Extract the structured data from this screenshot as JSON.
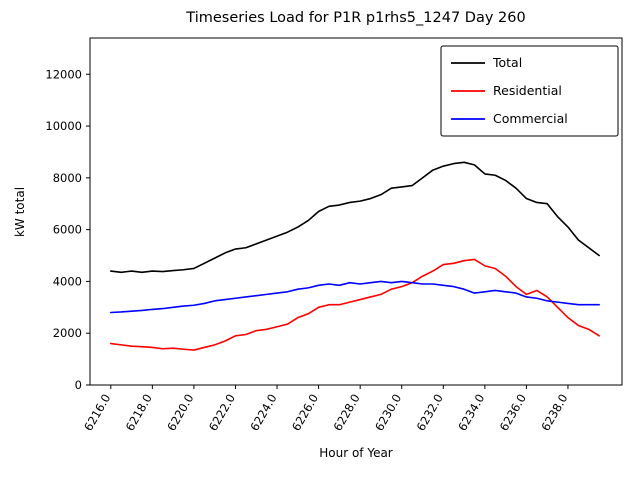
{
  "chart_data": {
    "type": "line",
    "title": "Timeseries Load for P1R p1rhs5_1247  Day 260",
    "xlabel": "Hour of Year",
    "ylabel": "kW total",
    "xlim": [
      6215.0,
      6240.6
    ],
    "ylim": [
      0,
      13400
    ],
    "grid": false,
    "legend_position": "upper right",
    "x_tick_labels": [
      "6216.0",
      "6218.0",
      "6220.0",
      "6222.0",
      "6224.0",
      "6226.0",
      "6228.0",
      "6230.0",
      "6232.0",
      "6234.0",
      "6236.0",
      "6238.0"
    ],
    "x_tick_values": [
      6216,
      6218,
      6220,
      6222,
      6224,
      6226,
      6228,
      6230,
      6232,
      6234,
      6236,
      6238
    ],
    "y_tick_labels": [
      "0",
      "2000",
      "4000",
      "6000",
      "8000",
      "10000",
      "12000"
    ],
    "y_tick_values": [
      0,
      2000,
      4000,
      6000,
      8000,
      10000,
      12000
    ],
    "x": [
      6216.0,
      6216.5,
      6217.0,
      6217.5,
      6218.0,
      6218.5,
      6219.0,
      6219.5,
      6220.0,
      6220.5,
      6221.0,
      6221.5,
      6222.0,
      6222.5,
      6223.0,
      6223.5,
      6224.0,
      6224.5,
      6225.0,
      6225.5,
      6226.0,
      6226.5,
      6227.0,
      6227.5,
      6228.0,
      6228.5,
      6229.0,
      6229.5,
      6230.0,
      6230.5,
      6231.0,
      6231.5,
      6232.0,
      6232.5,
      6233.0,
      6233.5,
      6234.0,
      6234.5,
      6235.0,
      6235.5,
      6236.0,
      6236.5,
      6237.0,
      6237.5,
      6238.0,
      6238.5,
      6239.0,
      6239.5
    ],
    "series": [
      {
        "name": "Total",
        "color": "#000000",
        "values": [
          4400,
          4350,
          4400,
          4350,
          4400,
          4380,
          4420,
          4450,
          4500,
          4700,
          4900,
          5100,
          5250,
          5300,
          5450,
          5600,
          5750,
          5900,
          6100,
          6350,
          6700,
          6900,
          6950,
          7050,
          7100,
          7200,
          7350,
          7600,
          7650,
          7700,
          8000,
          8300,
          8450,
          8550,
          8600,
          8500,
          8150,
          8100,
          7900,
          7600,
          7200,
          7050,
          7000,
          6500,
          6100,
          5600,
          5300,
          5000
        ]
      },
      {
        "name": "Residential",
        "color": "#ff0000",
        "values": [
          1600,
          1550,
          1500,
          1480,
          1450,
          1400,
          1420,
          1380,
          1350,
          1450,
          1550,
          1700,
          1900,
          1950,
          2100,
          2150,
          2250,
          2350,
          2600,
          2750,
          3000,
          3100,
          3100,
          3200,
          3300,
          3400,
          3500,
          3700,
          3800,
          3950,
          4200,
          4400,
          4650,
          4700,
          4800,
          4850,
          4600,
          4500,
          4200,
          3800,
          3500,
          3650,
          3400,
          3000,
          2600,
          2300,
          2150,
          1900
        ]
      },
      {
        "name": "Commercial",
        "color": "#0000ff",
        "values": [
          2800,
          2820,
          2850,
          2880,
          2920,
          2950,
          3000,
          3050,
          3080,
          3150,
          3250,
          3300,
          3350,
          3400,
          3450,
          3500,
          3550,
          3600,
          3700,
          3750,
          3850,
          3900,
          3850,
          3950,
          3900,
          3950,
          4000,
          3950,
          4000,
          3950,
          3900,
          3900,
          3850,
          3800,
          3700,
          3550,
          3600,
          3650,
          3600,
          3550,
          3400,
          3350,
          3250,
          3200,
          3150,
          3100,
          3100,
          3100
        ]
      }
    ]
  }
}
